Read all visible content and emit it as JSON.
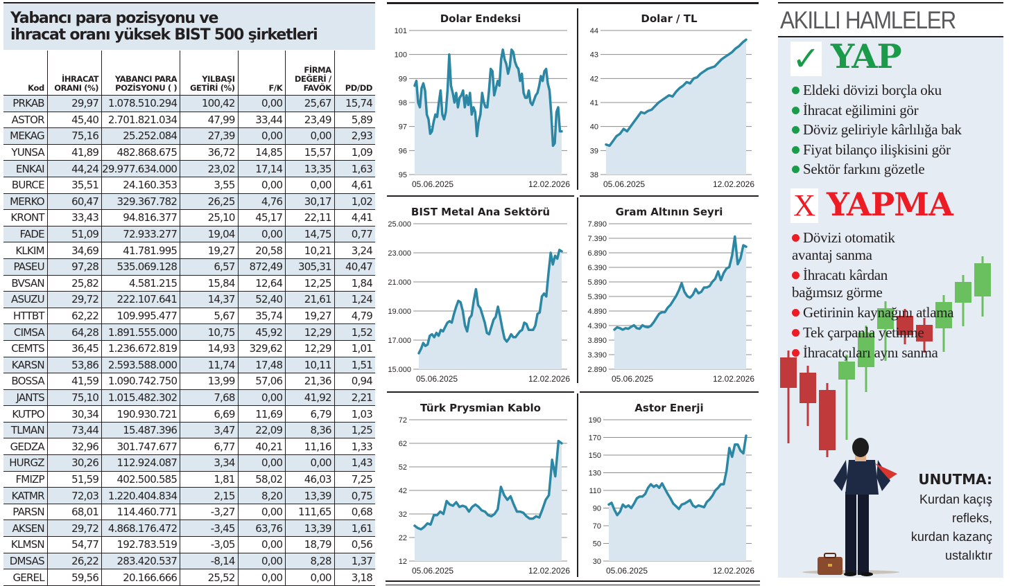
{
  "table": {
    "title_line1": "Yabancı para pozisyonu ve",
    "title_line2": "ihracat oranı yüksek BIST 500 şirketleri",
    "headers": [
      "Kod",
      "İHRACAT ORANI (%)",
      "YABANCI PARA POZİSYONU ( )",
      "YILBAŞI GETİRİ (%)",
      "F/K",
      "FİRMA DEĞERİ / FAVÖK",
      "PD/DD"
    ],
    "rows": [
      [
        "PRKAB",
        "29,97",
        "1.078.510.294",
        "100,42",
        "0,00",
        "25,67",
        "15,74"
      ],
      [
        "ASTOR",
        "45,40",
        "2.701.821.034",
        "47,99",
        "33,44",
        "23,49",
        "5,89"
      ],
      [
        "MEKAG",
        "75,16",
        "25.252.084",
        "27,39",
        "0,00",
        "0,00",
        "2,93"
      ],
      [
        "YUNSA",
        "41,89",
        "482.868.675",
        "36,72",
        "14,85",
        "15,57",
        "1,09"
      ],
      [
        "ENKAI",
        "44,24",
        "29.977.634.000",
        "23,02",
        "17,14",
        "13,35",
        "1,63"
      ],
      [
        "BURCE",
        "35,51",
        "24.160.353",
        "3,55",
        "0,00",
        "0,00",
        "4,61"
      ],
      [
        "MERKO",
        "60,47",
        "329.367.782",
        "26,25",
        "4,76",
        "30,17",
        "1,02"
      ],
      [
        "KRONT",
        "33,43",
        "94.816.377",
        "25,10",
        "45,17",
        "22,11",
        "4,41"
      ],
      [
        "FADE",
        "51,09",
        "72.933.277",
        "19,04",
        "0,00",
        "14,75",
        "0,77"
      ],
      [
        "KLKIM",
        "34,69",
        "41.781.995",
        "19,27",
        "20,58",
        "10,21",
        "3,24"
      ],
      [
        "PASEU",
        "97,28",
        "535.069.128",
        "6,57",
        "872,49",
        "305,31",
        "40,47"
      ],
      [
        "BVSAN",
        "25,82",
        "4.581.215",
        "15,84",
        "12,64",
        "12,25",
        "1,84"
      ],
      [
        "ASUZU",
        "29,72",
        "222.107.641",
        "14,37",
        "52,40",
        "21,61",
        "1,24"
      ],
      [
        "HTTBT",
        "62,22",
        "109.995.477",
        "5,67",
        "35,74",
        "19,27",
        "4,79"
      ],
      [
        "CIMSA",
        "64,28",
        "1.891.555.000",
        "10,75",
        "45,92",
        "12,29",
        "1,52"
      ],
      [
        "CEMTS",
        "36,45",
        "1.236.672.819",
        "14,93",
        "329,62",
        "12,29",
        "1,01"
      ],
      [
        "KARSN",
        "53,86",
        "2.593.588.000",
        "11,74",
        "17,48",
        "10,11",
        "1,51"
      ],
      [
        "BOSSA",
        "41,59",
        "1.090.742.750",
        "13,99",
        "57,06",
        "21,36",
        "0,94"
      ],
      [
        "JANTS",
        "75,10",
        "1.015.482.302",
        "7,68",
        "0,00",
        "41,92",
        "2,21"
      ],
      [
        "KUTPO",
        "30,34",
        "190.930.721",
        "6,69",
        "11,69",
        "6,79",
        "1,03"
      ],
      [
        "TLMAN",
        "73,44",
        "15.487.396",
        "3,47",
        "22,09",
        "8,36",
        "1,25"
      ],
      [
        "GEDZA",
        "32,96",
        "301.747.677",
        "6,77",
        "40,21",
        "11,16",
        "1,33"
      ],
      [
        "HURGZ",
        "30,26",
        "112.924.087",
        "3,34",
        "0,00",
        "0,00",
        "1,43"
      ],
      [
        "FMIZP",
        "51,59",
        "402.500.585",
        "1,81",
        "58,02",
        "46,03",
        "7,25"
      ],
      [
        "KATMR",
        "72,03",
        "1.220.404.834",
        "2,15",
        "8,20",
        "13,39",
        "0,75"
      ],
      [
        "PARSN",
        "68,01",
        "114.460.771",
        "-3,27",
        "0,00",
        "111,65",
        "0,68"
      ],
      [
        "AKSEN",
        "29,72",
        "4.868.176.472",
        "-3,45",
        "63,76",
        "13,39",
        "1,61"
      ],
      [
        "KLMSN",
        "54,77",
        "192.783.519",
        "-3,05",
        "0,00",
        "18,79",
        "0,56"
      ],
      [
        "DMSAS",
        "26,22",
        "283.420.537",
        "-8,14",
        "0,00",
        "8,28",
        "1,37"
      ],
      [
        "GEREL",
        "59,56",
        "20.166.666",
        "25,52",
        "0,00",
        "0,00",
        "3,18"
      ]
    ]
  },
  "colors": {
    "line": "#2b87a3",
    "area": "#d9e6ef",
    "grid": "#8c8c8c",
    "green": "#1a9b4a",
    "red": "#ed1c24",
    "candle_green": "#6abf5e",
    "candle_red": "#c0393b"
  },
  "chart_data": [
    {
      "type": "area",
      "title": "Dolar Endeksi",
      "x_start": "05.06.2025",
      "x_end": "12.02.2026",
      "yticks": [
        "95",
        "96",
        "97",
        "98",
        "99",
        "100",
        "101"
      ],
      "ylim": [
        95,
        101
      ],
      "values": [
        98.7,
        98.9,
        98.0,
        97.8,
        98.6,
        98.8,
        98.5,
        97.5,
        97.3,
        96.7,
        96.8,
        97.2,
        97.5,
        97.4,
        98.0,
        98.5,
        97.5,
        97.3,
        97.6,
        98.5,
        100.0,
        98.7,
        98.4,
        98.0,
        98.4,
        97.8,
        98.2,
        98.3,
        98.5,
        97.8,
        98.3,
        97.9,
        98.4,
        97.5,
        97.8,
        97.6,
        96.6,
        97.2,
        97.5,
        98.4,
        98.0,
        97.8,
        97.8,
        98.5,
        99.4,
        99.3,
        98.3,
        98.6,
        98.9,
        98.7,
        99.8,
        100.2,
        99.8,
        99.6,
        99.2,
        99.5,
        100.2,
        100.1,
        99.7,
        99.5,
        99.4,
        98.9,
        99.2,
        98.4,
        98.2,
        98.2,
        98.5,
        98.0,
        97.9,
        98.1,
        98.3,
        98.4,
        98.7,
        99.1,
        98.9,
        99.3,
        99.4,
        98.8,
        98.5,
        97.5,
        96.2,
        96.3,
        97.6,
        97.8,
        96.8,
        96.8
      ]
    },
    {
      "type": "area",
      "title": "Dolar / TL",
      "x_start": "05.06.2025",
      "x_end": "12.02.2026",
      "yticks": [
        "38",
        "39",
        "40",
        "41",
        "42",
        "43",
        "44"
      ],
      "ylim": [
        38,
        44
      ],
      "values": [
        39.25,
        39.2,
        39.4,
        39.6,
        39.7,
        39.9,
        39.8,
        40.0,
        40.2,
        40.4,
        40.6,
        40.55,
        40.65,
        40.7,
        40.85,
        41.0,
        41.1,
        41.2,
        41.3,
        41.25,
        41.45,
        41.6,
        41.7,
        41.85,
        41.8,
        42.0,
        42.05,
        42.2,
        42.3,
        42.4,
        42.45,
        42.5,
        42.65,
        42.8,
        42.9,
        43.0,
        43.1,
        43.25,
        43.35,
        43.5,
        43.62
      ]
    },
    {
      "type": "area",
      "title": "BIST Metal Ana Sektörü",
      "x_start": "05.06.2025",
      "x_end": "12.02.2026",
      "yticks": [
        "15.000",
        "17.000",
        "19.000",
        "21.000",
        "23.000",
        "25.000"
      ],
      "ylim": [
        15000,
        25000
      ],
      "values": [
        16100,
        16400,
        16800,
        16600,
        16700,
        17300,
        17400,
        17200,
        17500,
        17300,
        17700,
        17600,
        17900,
        18200,
        18300,
        18200,
        18800,
        19300,
        19700,
        19600,
        19000,
        18000,
        17600,
        18500,
        18700,
        19700,
        20500,
        19400,
        19200,
        18700,
        18200,
        17500,
        17400,
        17900,
        18400,
        18600,
        19300,
        18600,
        17800,
        17100,
        16900,
        17100,
        17400,
        17200,
        17200,
        17400,
        17600,
        17700,
        18200,
        18100,
        17700,
        17700,
        17700,
        18000,
        18800,
        18900,
        20000,
        20200,
        20000,
        21600,
        23000,
        22200,
        22800,
        22600,
        23200,
        23100
      ]
    },
    {
      "type": "area",
      "title": "Gram Altının Seyri",
      "x_start": "05.06.2025",
      "x_end": "12.02.2026",
      "yticks": [
        "2.890",
        "3.390",
        "3.890",
        "4.390",
        "4.890",
        "5.390",
        "5.890",
        "6.390",
        "6.890",
        "7.390",
        "7.890"
      ],
      "ylim": [
        2890,
        7890
      ],
      "values": [
        4250,
        4330,
        4300,
        4250,
        4300,
        4280,
        4350,
        4400,
        4300,
        4280,
        4400,
        4350,
        4330,
        4380,
        4500,
        4650,
        4800,
        4850,
        4850,
        5000,
        5100,
        5250,
        5400,
        5600,
        5850,
        5550,
        5400,
        5350,
        5450,
        5650,
        5500,
        5550,
        5700,
        5700,
        5750,
        5900,
        6000,
        6250,
        5950,
        6200,
        6350,
        6400,
        6800,
        7450,
        6500,
        6700,
        7150,
        7100
      ]
    },
    {
      "type": "area",
      "title": "Türk Prysmian Kablo",
      "x_start": "05.06.2025",
      "x_end": "12.02.2026",
      "yticks": [
        "12",
        "22",
        "32",
        "42",
        "52",
        "62",
        "72"
      ],
      "ylim": [
        12,
        72
      ],
      "values": [
        27,
        26,
        25.5,
        26.5,
        28,
        27.5,
        31.5,
        31.5,
        33,
        32,
        37.5,
        36,
        35.5,
        37,
        35,
        35.5,
        35,
        33,
        35,
        36,
        35,
        33.5,
        33,
        31.5,
        31,
        32,
        34,
        43.5,
        40,
        38,
        39.5,
        36,
        33,
        33,
        32.5,
        31,
        30,
        30,
        31,
        30.5,
        34,
        38,
        40,
        55,
        48,
        63,
        62
      ]
    },
    {
      "type": "area",
      "title": "Astor Enerji",
      "x_start": "05.06.2025",
      "x_end": "12.02.2026",
      "yticks": [
        "30",
        "50",
        "70",
        "90",
        "110",
        "130",
        "150",
        "170",
        "190"
      ],
      "ylim": [
        30,
        190
      ],
      "values": [
        94,
        96,
        88,
        82,
        86,
        94,
        91,
        93,
        90,
        95,
        101,
        103,
        103,
        106,
        113,
        117,
        114,
        116,
        113,
        118,
        112,
        106,
        101,
        95,
        92,
        89,
        94,
        95,
        97,
        99,
        93,
        91,
        93,
        92,
        91,
        97,
        100,
        104,
        110,
        113,
        117,
        117,
        132,
        158,
        148,
        162,
        162,
        155,
        152,
        172
      ]
    }
  ],
  "right_panel": {
    "title": "AKILLI HAMLELER",
    "do_icon": "✓",
    "do_title": "YAP",
    "do_items": [
      "Eldeki dövizi borçla oku",
      "İhracat eğilimini gör",
      "Döviz geliriyle kârlılığa bak",
      "Fiyat bilanço ilişkisini gör",
      "Sektör farkını gözetle"
    ],
    "dont_icon": "X",
    "dont_title": "YAPMA",
    "dont_items": [
      [
        "Dövizi otomatik",
        "avantaj sanma"
      ],
      [
        "İhracatı kârdan",
        "bağımsız görme"
      ],
      [
        "Getirinin kaynağını atlama"
      ],
      [
        "Tek çarpanla yetinme"
      ],
      [
        "İhracatçıları aynı sanma"
      ]
    ],
    "remember_title": "UNUTMA:",
    "remember_lines": [
      "Kurdan kaçış",
      "refleks,",
      "kurdan kazanç",
      "ustalıktır"
    ],
    "candles": [
      "down",
      "down",
      "down",
      "up",
      "up",
      "up",
      "down",
      "down",
      "up",
      "up",
      "up"
    ]
  }
}
